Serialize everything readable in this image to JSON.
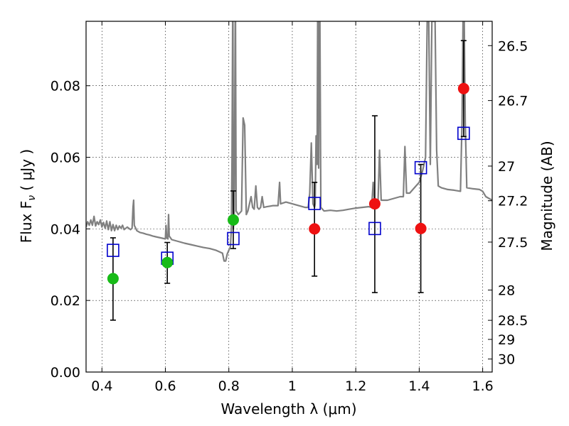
{
  "chart_data": {
    "type": "scatter",
    "xlabel": "Wavelength  λ (μm)",
    "ylabel": "Flux  F",
    "ylabel_sub": "ν",
    "ylabel_unit": "  ( μJy )",
    "y2label": "Magnitude (AB)",
    "xlim": [
      0.35,
      1.63
    ],
    "ylim": [
      0.0,
      0.098
    ],
    "grid": true,
    "x_ticks": [
      0.4,
      0.6,
      0.8,
      1.0,
      1.2,
      1.4,
      1.6
    ],
    "x_tick_labels": [
      "0.4",
      "0.6",
      "0.8",
      "1",
      "1.2",
      "1.4",
      "1.6"
    ],
    "y_ticks": [
      0.0,
      0.02,
      0.04,
      0.06,
      0.08
    ],
    "y_tick_labels": [
      "0.00",
      "0.02",
      "0.04",
      "0.06",
      "0.08"
    ],
    "y2_ticks": [
      {
        "label": "26.5",
        "mag": 26.5
      },
      {
        "label": "26.7",
        "mag": 26.7
      },
      {
        "label": "27",
        "mag": 27.0
      },
      {
        "label": "27.2",
        "mag": 27.2
      },
      {
        "label": "27.5",
        "mag": 27.5
      },
      {
        "label": "28",
        "mag": 28.0
      },
      {
        "label": "28.5",
        "mag": 28.5
      },
      {
        "label": "29",
        "mag": 29.0
      },
      {
        "label": "30",
        "mag": 30.0
      }
    ],
    "series": [
      {
        "marker": "square",
        "color": "#0000cc",
        "points": [
          {
            "x": 0.435,
            "y": 0.034
          },
          {
            "x": 0.606,
            "y": 0.0318
          },
          {
            "x": 0.814,
            "y": 0.0373
          },
          {
            "x": 1.07,
            "y": 0.0471
          },
          {
            "x": 1.26,
            "y": 0.0401
          },
          {
            "x": 1.405,
            "y": 0.0571
          },
          {
            "x": 1.54,
            "y": 0.0667
          }
        ]
      },
      {
        "marker": "circle",
        "color": "#18bb18",
        "points": [
          {
            "x": 0.435,
            "y": 0.0261,
            "err_low": 0.0145,
            "err_high": 0.0375
          },
          {
            "x": 0.606,
            "y": 0.0306,
            "err_low": 0.0248,
            "err_high": 0.0362
          },
          {
            "x": 0.814,
            "y": 0.0425,
            "err_low": 0.0345,
            "err_high": 0.0506
          }
        ]
      },
      {
        "marker": "circle",
        "color": "#ee1111",
        "points": [
          {
            "x": 1.07,
            "y": 0.04,
            "err_low": 0.0268,
            "err_high": 0.053
          },
          {
            "x": 1.26,
            "y": 0.047,
            "err_low": 0.0222,
            "err_high": 0.0716
          },
          {
            "x": 1.405,
            "y": 0.0401,
            "err_low": 0.0222,
            "err_high": 0.058
          },
          {
            "x": 1.54,
            "y": 0.0792,
            "err_low": 0.0658,
            "err_high": 0.0926
          }
        ]
      }
    ],
    "model_spectrum": {
      "color": "#808080",
      "points": [
        [
          0.35,
          0.0405
        ],
        [
          0.355,
          0.042
        ],
        [
          0.36,
          0.041
        ],
        [
          0.365,
          0.0425
        ],
        [
          0.37,
          0.041
        ],
        [
          0.375,
          0.0435
        ],
        [
          0.38,
          0.0408
        ],
        [
          0.385,
          0.042
        ],
        [
          0.39,
          0.0412
        ],
        [
          0.395,
          0.0425
        ],
        [
          0.4,
          0.0405
        ],
        [
          0.405,
          0.0418
        ],
        [
          0.41,
          0.0402
        ],
        [
          0.415,
          0.0422
        ],
        [
          0.42,
          0.0398
        ],
        [
          0.425,
          0.042
        ],
        [
          0.43,
          0.0395
        ],
        [
          0.435,
          0.0412
        ],
        [
          0.44,
          0.0395
        ],
        [
          0.445,
          0.041
        ],
        [
          0.45,
          0.0398
        ],
        [
          0.455,
          0.0408
        ],
        [
          0.46,
          0.0402
        ],
        [
          0.465,
          0.041
        ],
        [
          0.47,
          0.0398
        ],
        [
          0.48,
          0.0405
        ],
        [
          0.49,
          0.0398
        ],
        [
          0.495,
          0.0402
        ],
        [
          0.498,
          0.046
        ],
        [
          0.5,
          0.048
        ],
        [
          0.502,
          0.041
        ],
        [
          0.51,
          0.0395
        ],
        [
          0.52,
          0.039
        ],
        [
          0.53,
          0.0388
        ],
        [
          0.54,
          0.0385
        ],
        [
          0.55,
          0.0383
        ],
        [
          0.56,
          0.038
        ],
        [
          0.57,
          0.0378
        ],
        [
          0.58,
          0.0376
        ],
        [
          0.59,
          0.0374
        ],
        [
          0.6,
          0.0372
        ],
        [
          0.602,
          0.041
        ],
        [
          0.604,
          0.0375
        ],
        [
          0.608,
          0.0372
        ],
        [
          0.61,
          0.044
        ],
        [
          0.612,
          0.038
        ],
        [
          0.62,
          0.037
        ],
        [
          0.64,
          0.0365
        ],
        [
          0.66,
          0.036
        ],
        [
          0.68,
          0.0356
        ],
        [
          0.7,
          0.0352
        ],
        [
          0.72,
          0.0348
        ],
        [
          0.74,
          0.0345
        ],
        [
          0.76,
          0.034
        ],
        [
          0.77,
          0.0336
        ],
        [
          0.78,
          0.0332
        ],
        [
          0.785,
          0.031
        ],
        [
          0.79,
          0.031
        ],
        [
          0.795,
          0.033
        ],
        [
          0.8,
          0.034
        ],
        [
          0.805,
          0.035
        ],
        [
          0.808,
          0.04
        ],
        [
          0.81,
          0.06
        ],
        [
          0.812,
          0.098
        ],
        [
          0.813,
          0.098
        ],
        [
          0.814,
          0.04
        ],
        [
          0.817,
          0.043
        ],
        [
          0.82,
          0.098
        ],
        [
          0.821,
          0.098
        ],
        [
          0.823,
          0.045
        ],
        [
          0.83,
          0.044
        ],
        [
          0.84,
          0.045
        ],
        [
          0.845,
          0.071
        ],
        [
          0.85,
          0.069
        ],
        [
          0.855,
          0.044
        ],
        [
          0.86,
          0.045
        ],
        [
          0.87,
          0.049
        ],
        [
          0.875,
          0.046
        ],
        [
          0.88,
          0.0455
        ],
        [
          0.885,
          0.052
        ],
        [
          0.89,
          0.046
        ],
        [
          0.895,
          0.0455
        ],
        [
          0.9,
          0.046
        ],
        [
          0.905,
          0.049
        ],
        [
          0.91,
          0.046
        ],
        [
          0.92,
          0.0462
        ],
        [
          0.94,
          0.0465
        ],
        [
          0.955,
          0.0465
        ],
        [
          0.96,
          0.053
        ],
        [
          0.963,
          0.047
        ],
        [
          0.98,
          0.0475
        ],
        [
          1.0,
          0.047
        ],
        [
          1.02,
          0.0465
        ],
        [
          1.04,
          0.046
        ],
        [
          1.05,
          0.046
        ],
        [
          1.055,
          0.05
        ],
        [
          1.06,
          0.064
        ],
        [
          1.065,
          0.047
        ],
        [
          1.07,
          0.046
        ],
        [
          1.072,
          0.047
        ],
        [
          1.075,
          0.066
        ],
        [
          1.078,
          0.058
        ],
        [
          1.08,
          0.098
        ],
        [
          1.082,
          0.098
        ],
        [
          1.083,
          0.057
        ],
        [
          1.085,
          0.098
        ],
        [
          1.087,
          0.098
        ],
        [
          1.09,
          0.046
        ],
        [
          1.1,
          0.045
        ],
        [
          1.12,
          0.0452
        ],
        [
          1.14,
          0.045
        ],
        [
          1.16,
          0.0452
        ],
        [
          1.18,
          0.0455
        ],
        [
          1.2,
          0.0458
        ],
        [
          1.22,
          0.046
        ],
        [
          1.24,
          0.0462
        ],
        [
          1.25,
          0.046
        ],
        [
          1.255,
          0.053
        ],
        [
          1.26,
          0.046
        ],
        [
          1.27,
          0.0468
        ],
        [
          1.275,
          0.062
        ],
        [
          1.28,
          0.048
        ],
        [
          1.3,
          0.048
        ],
        [
          1.32,
          0.0485
        ],
        [
          1.34,
          0.049
        ],
        [
          1.35,
          0.049
        ],
        [
          1.355,
          0.063
        ],
        [
          1.36,
          0.05
        ],
        [
          1.37,
          0.05
        ],
        [
          1.38,
          0.051
        ],
        [
          1.39,
          0.052
        ],
        [
          1.4,
          0.053
        ],
        [
          1.41,
          0.056
        ],
        [
          1.42,
          0.06
        ],
        [
          1.425,
          0.098
        ],
        [
          1.43,
          0.098
        ],
        [
          1.435,
          0.058
        ],
        [
          1.44,
          0.098
        ],
        [
          1.45,
          0.098
        ],
        [
          1.455,
          0.062
        ],
        [
          1.46,
          0.052
        ],
        [
          1.47,
          0.0515
        ],
        [
          1.49,
          0.051
        ],
        [
          1.51,
          0.0508
        ],
        [
          1.53,
          0.0505
        ],
        [
          1.535,
          0.07
        ],
        [
          1.538,
          0.098
        ],
        [
          1.542,
          0.098
        ],
        [
          1.545,
          0.07
        ],
        [
          1.55,
          0.0515
        ],
        [
          1.57,
          0.0512
        ],
        [
          1.59,
          0.051
        ],
        [
          1.6,
          0.0505
        ],
        [
          1.61,
          0.049
        ],
        [
          1.63,
          0.048
        ]
      ]
    }
  }
}
